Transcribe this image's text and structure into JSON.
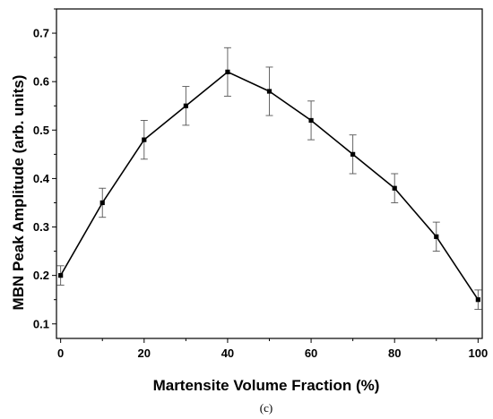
{
  "chart_data": {
    "type": "line",
    "x": [
      0,
      10,
      20,
      30,
      40,
      50,
      60,
      70,
      80,
      90,
      100
    ],
    "series": [
      {
        "values": [
          0.2,
          0.35,
          0.48,
          0.55,
          0.62,
          0.58,
          0.52,
          0.45,
          0.38,
          0.28,
          0.15
        ],
        "error": [
          0.02,
          0.03,
          0.04,
          0.04,
          0.05,
          0.05,
          0.04,
          0.04,
          0.03,
          0.03,
          0.02
        ],
        "color": "#000000",
        "marker": "square"
      }
    ],
    "xlabel": "Martensite Volume Fraction (%)",
    "ylabel": "MBN Peak Amplitude (arb. units)",
    "xlim": [
      -1,
      101
    ],
    "ylim": [
      0.07,
      0.75
    ],
    "xticks": [
      0,
      20,
      40,
      60,
      80,
      100
    ],
    "yticks": [
      0.1,
      0.2,
      0.3,
      0.4,
      0.5,
      0.6,
      0.7
    ],
    "grid": false,
    "legend": "none"
  },
  "caption": "(c)"
}
